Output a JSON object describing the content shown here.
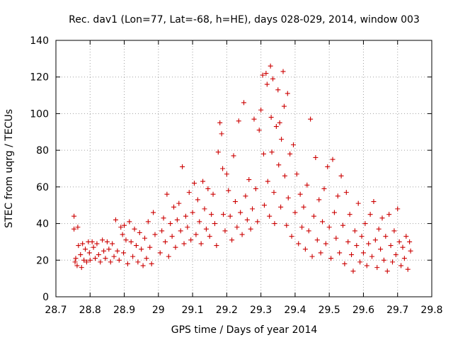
{
  "chart_data": {
    "type": "scatter",
    "title": "Rec. dav1 (Lon=77, Lat=-68, h=HE), days 028-029, 2014, window 003",
    "xlabel": "GPS time / Days of year 2014",
    "ylabel": "STEC from uqrg / TECUs",
    "xlim": [
      28.7,
      29.8
    ],
    "ylim": [
      0,
      140
    ],
    "xticks": [
      "28.7",
      "28.8",
      "28.9",
      "29",
      "29.1",
      "29.2",
      "29.3",
      "29.4",
      "29.5",
      "29.6",
      "29.7",
      "29.8"
    ],
    "yticks": [
      "0",
      "20",
      "40",
      "60",
      "80",
      "100",
      "120",
      "140"
    ],
    "grid": true,
    "marker": "+",
    "color": "#cc0000",
    "series": [
      {
        "values": [
          [
            28.753,
            44
          ],
          [
            28.753,
            37
          ],
          [
            28.756,
            19
          ],
          [
            28.758,
            21
          ],
          [
            28.762,
            17
          ],
          [
            28.764,
            38
          ],
          [
            28.766,
            28
          ],
          [
            28.772,
            23
          ],
          [
            28.775,
            16
          ],
          [
            28.778,
            29
          ],
          [
            28.782,
            20
          ],
          [
            28.786,
            26
          ],
          [
            28.79,
            19
          ],
          [
            28.795,
            30
          ],
          [
            28.798,
            24
          ],
          [
            28.8,
            20
          ],
          [
            28.806,
            30
          ],
          [
            28.81,
            27
          ],
          [
            28.815,
            21
          ],
          [
            28.82,
            29
          ],
          [
            28.825,
            23
          ],
          [
            28.83,
            19
          ],
          [
            28.836,
            31
          ],
          [
            28.84,
            25
          ],
          [
            28.845,
            21
          ],
          [
            28.85,
            30
          ],
          [
            28.855,
            26
          ],
          [
            28.86,
            19
          ],
          [
            28.865,
            29
          ],
          [
            28.87,
            22
          ],
          [
            28.875,
            42
          ],
          [
            28.88,
            25
          ],
          [
            28.885,
            20
          ],
          [
            28.89,
            38
          ],
          [
            28.895,
            34
          ],
          [
            28.898,
            24
          ],
          [
            28.9,
            39
          ],
          [
            28.905,
            31
          ],
          [
            28.91,
            18
          ],
          [
            28.915,
            41
          ],
          [
            28.92,
            30
          ],
          [
            28.925,
            22
          ],
          [
            28.93,
            37
          ],
          [
            28.935,
            28
          ],
          [
            28.94,
            19
          ],
          [
            28.945,
            35
          ],
          [
            28.95,
            26
          ],
          [
            28.955,
            17
          ],
          [
            28.96,
            32
          ],
          [
            28.965,
            21
          ],
          [
            28.97,
            41
          ],
          [
            28.975,
            27
          ],
          [
            28.98,
            18
          ],
          [
            28.985,
            46
          ],
          [
            28.99,
            34
          ],
          [
            29.005,
            24
          ],
          [
            29.01,
            36
          ],
          [
            29.015,
            43
          ],
          [
            29.02,
            30
          ],
          [
            29.025,
            56
          ],
          [
            29.03,
            22
          ],
          [
            29.035,
            40
          ],
          [
            29.04,
            33
          ],
          [
            29.045,
            49
          ],
          [
            29.05,
            27
          ],
          [
            29.055,
            42
          ],
          [
            29.06,
            51
          ],
          [
            29.065,
            36
          ],
          [
            29.07,
            71
          ],
          [
            29.075,
            29
          ],
          [
            29.08,
            44
          ],
          [
            29.085,
            38
          ],
          [
            29.09,
            57
          ],
          [
            29.095,
            31
          ],
          [
            29.1,
            46
          ],
          [
            29.105,
            62
          ],
          [
            29.11,
            34
          ],
          [
            29.115,
            53
          ],
          [
            29.12,
            41
          ],
          [
            29.125,
            29
          ],
          [
            29.13,
            63
          ],
          [
            29.135,
            48
          ],
          [
            29.14,
            37
          ],
          [
            29.145,
            59
          ],
          [
            29.15,
            33
          ],
          [
            29.155,
            45
          ],
          [
            29.16,
            56
          ],
          [
            29.165,
            40
          ],
          [
            29.17,
            28
          ],
          [
            29.175,
            79
          ],
          [
            29.18,
            95
          ],
          [
            29.185,
            89
          ],
          [
            29.188,
            70
          ],
          [
            29.19,
            45
          ],
          [
            29.195,
            36
          ],
          [
            29.2,
            67
          ],
          [
            29.205,
            58
          ],
          [
            29.21,
            44
          ],
          [
            29.215,
            31
          ],
          [
            29.22,
            77
          ],
          [
            29.225,
            52
          ],
          [
            29.23,
            38
          ],
          [
            29.235,
            96
          ],
          [
            29.24,
            46
          ],
          [
            29.245,
            34
          ],
          [
            29.25,
            106
          ],
          [
            29.255,
            55
          ],
          [
            29.26,
            42
          ],
          [
            29.265,
            64
          ],
          [
            29.27,
            37
          ],
          [
            29.275,
            48
          ],
          [
            29.28,
            97
          ],
          [
            29.285,
            59
          ],
          [
            29.29,
            41
          ],
          [
            29.295,
            91
          ],
          [
            29.3,
            102
          ],
          [
            29.305,
            121
          ],
          [
            29.308,
            78
          ],
          [
            29.31,
            50
          ],
          [
            29.315,
            122
          ],
          [
            29.318,
            116
          ],
          [
            29.32,
            63
          ],
          [
            29.325,
            44
          ],
          [
            29.328,
            126
          ],
          [
            29.33,
            98
          ],
          [
            29.332,
            79
          ],
          [
            29.335,
            119
          ],
          [
            29.338,
            57
          ],
          [
            29.34,
            40
          ],
          [
            29.345,
            93
          ],
          [
            29.35,
            113
          ],
          [
            29.352,
            72
          ],
          [
            29.355,
            95
          ],
          [
            29.358,
            49
          ],
          [
            29.36,
            86
          ],
          [
            29.365,
            123
          ],
          [
            29.368,
            104
          ],
          [
            29.37,
            66
          ],
          [
            29.375,
            39
          ],
          [
            29.378,
            111
          ],
          [
            29.38,
            54
          ],
          [
            29.385,
            78
          ],
          [
            29.39,
            33
          ],
          [
            29.395,
            83
          ],
          [
            29.4,
            46
          ],
          [
            29.405,
            67
          ],
          [
            29.41,
            29
          ],
          [
            29.415,
            56
          ],
          [
            29.42,
            38
          ],
          [
            29.425,
            49
          ],
          [
            29.43,
            26
          ],
          [
            29.435,
            61
          ],
          [
            29.44,
            36
          ],
          [
            29.445,
            97
          ],
          [
            29.45,
            22
          ],
          [
            29.455,
            44
          ],
          [
            29.46,
            76
          ],
          [
            29.465,
            31
          ],
          [
            29.47,
            53
          ],
          [
            29.475,
            24
          ],
          [
            29.48,
            41
          ],
          [
            29.485,
            59
          ],
          [
            29.49,
            29
          ],
          [
            29.495,
            71
          ],
          [
            29.5,
            38
          ],
          [
            29.505,
            21
          ],
          [
            29.51,
            75
          ],
          [
            29.515,
            46
          ],
          [
            29.52,
            32
          ],
          [
            29.525,
            55
          ],
          [
            29.53,
            24
          ],
          [
            29.535,
            66
          ],
          [
            29.54,
            39
          ],
          [
            29.545,
            18
          ],
          [
            29.55,
            57
          ],
          [
            29.555,
            30
          ],
          [
            29.56,
            45
          ],
          [
            29.565,
            23
          ],
          [
            29.57,
            14
          ],
          [
            29.575,
            36
          ],
          [
            29.58,
            28
          ],
          [
            29.585,
            51
          ],
          [
            29.59,
            19
          ],
          [
            29.595,
            33
          ],
          [
            29.6,
            24
          ],
          [
            29.605,
            40
          ],
          [
            29.61,
            17
          ],
          [
            29.615,
            29
          ],
          [
            29.62,
            45
          ],
          [
            29.625,
            22
          ],
          [
            29.63,
            52
          ],
          [
            29.635,
            31
          ],
          [
            29.64,
            16
          ],
          [
            29.645,
            37
          ],
          [
            29.65,
            26
          ],
          [
            29.655,
            43
          ],
          [
            29.66,
            20
          ],
          [
            29.665,
            33
          ],
          [
            29.67,
            14
          ],
          [
            29.675,
            45
          ],
          [
            29.68,
            28
          ],
          [
            29.685,
            19
          ],
          [
            29.69,
            36
          ],
          [
            29.695,
            23
          ],
          [
            29.7,
            48
          ],
          [
            29.705,
            30
          ],
          [
            29.71,
            17
          ],
          [
            29.715,
            27
          ],
          [
            29.72,
            21
          ],
          [
            29.725,
            33
          ],
          [
            29.73,
            15
          ],
          [
            29.735,
            30
          ],
          [
            29.738,
            25
          ]
        ]
      }
    ]
  }
}
